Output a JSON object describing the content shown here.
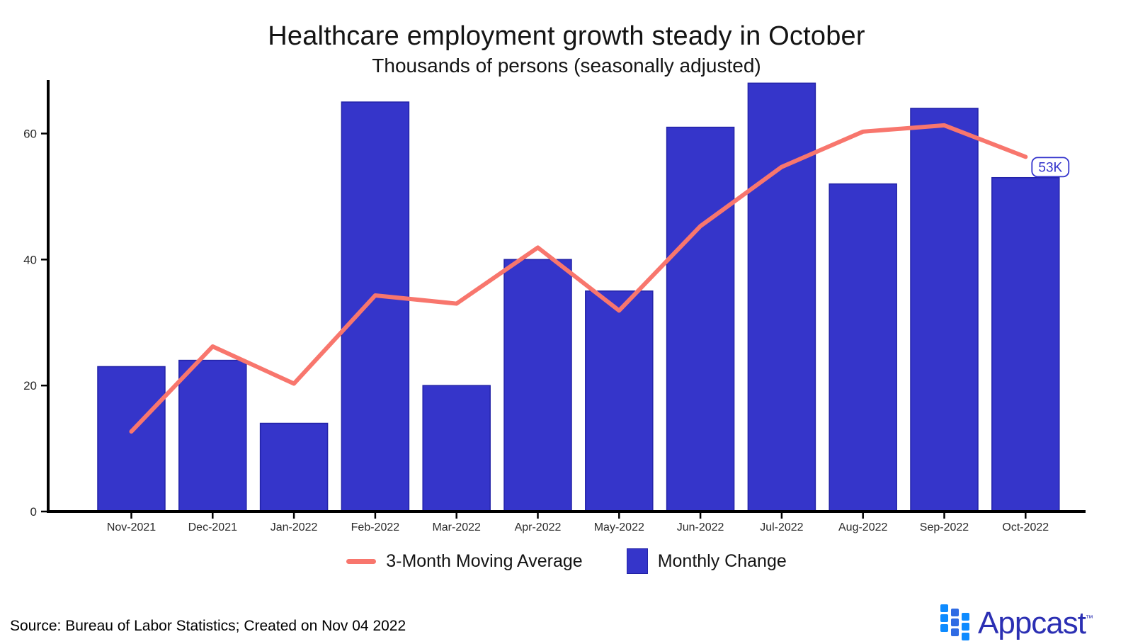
{
  "page": {
    "title": "Healthcare employment growth steady in October",
    "subtitle": "Thousands of persons (seasonally adjusted)",
    "source_note": "Source: Bureau of Labor Statistics; Created on Nov 04 2022"
  },
  "legend": {
    "line_label": "3-Month Moving Average",
    "bar_label": "Monthly Change"
  },
  "annotation": {
    "label": "53K"
  },
  "brand": {
    "name": "Appcast",
    "tm": "™"
  },
  "colors": {
    "bar_fill": "#3535CA",
    "bar_stroke": "#2323A8",
    "line": "#F8766D",
    "axis": "#000000",
    "annotation_blue": "#3333CC",
    "logo_azure": "#0E8BFF",
    "logo_navy": "#2B2FB3"
  },
  "chart_data": {
    "type": "bar",
    "title": "Healthcare employment growth steady in October",
    "subtitle": "Thousands of persons (seasonally adjusted)",
    "categories": [
      "Nov-2021",
      "Dec-2021",
      "Jan-2022",
      "Feb-2022",
      "Mar-2022",
      "Apr-2022",
      "May-2022",
      "Jun-2022",
      "Jul-2022",
      "Aug-2022",
      "Sep-2022",
      "Oct-2022"
    ],
    "series": [
      {
        "name": "Monthly Change",
        "type": "bar",
        "values": [
          23,
          24,
          14,
          65,
          20,
          40,
          35,
          61,
          68,
          52,
          64,
          53
        ]
      },
      {
        "name": "3-Month Moving Average",
        "type": "line",
        "values": [
          12.7,
          26.2,
          20.3,
          34.3,
          33.0,
          41.9,
          31.9,
          45.3,
          54.7,
          60.3,
          61.3,
          56.3
        ]
      }
    ],
    "xlabel": "",
    "ylabel": "",
    "ylim": [
      0,
      68
    ],
    "yticks": [
      0,
      20,
      40,
      60
    ],
    "grid": false,
    "legend_position": "bottom",
    "annotation": {
      "text": "53K",
      "attached_to": "end of moving-average line / Oct-2022"
    }
  }
}
